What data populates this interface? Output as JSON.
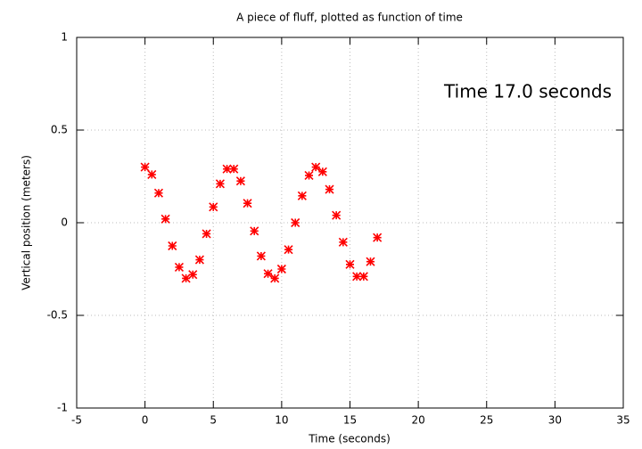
{
  "chart_data": {
    "type": "scatter",
    "title": "A piece of fluff, plotted as function of time",
    "xlabel": "Time (seconds)",
    "ylabel": "Vertical position (meters)",
    "annotation": "Time 17.0 seconds",
    "x": [
      0,
      0.5,
      1,
      1.5,
      2,
      2.5,
      3,
      3.5,
      4,
      4.5,
      5,
      5.5,
      6,
      6.5,
      7,
      7.5,
      8,
      8.5,
      9,
      9.5,
      10,
      10.5,
      11,
      11.5,
      12,
      12.5,
      13,
      13.5,
      14,
      14.5,
      15,
      15.5,
      16,
      16.5,
      17
    ],
    "values": [
      0.3,
      0.26,
      0.16,
      0.02,
      -0.125,
      -0.24,
      -0.3,
      -0.28,
      -0.2,
      -0.06,
      0.085,
      0.21,
      0.29,
      0.29,
      0.225,
      0.105,
      -0.045,
      -0.18,
      -0.275,
      -0.3,
      -0.25,
      -0.145,
      0.0,
      0.145,
      0.255,
      0.3,
      0.275,
      0.18,
      0.04,
      -0.105,
      -0.225,
      -0.29,
      -0.29,
      -0.21,
      -0.08
    ],
    "color": "#ff0000",
    "xlim": [
      -5,
      35
    ],
    "xticks": [
      -5,
      0,
      5,
      10,
      15,
      20,
      25,
      30,
      35
    ],
    "ylim": [
      -1,
      1
    ],
    "yticks": [
      -1,
      -0.5,
      0,
      0.5,
      1
    ],
    "grid": true
  }
}
